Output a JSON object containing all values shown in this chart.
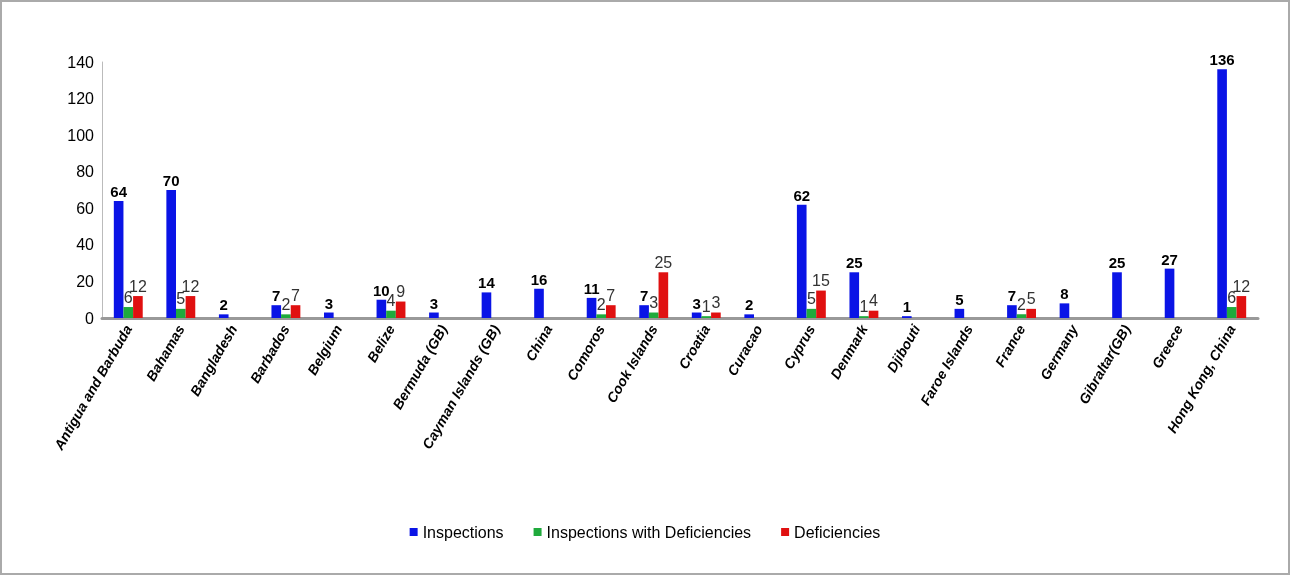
{
  "chart_data": {
    "type": "bar",
    "categories": [
      "Antigua and Barbuda",
      "Bahamas",
      "Bangladesh",
      "Barbados",
      "Belgium",
      "Belize",
      "Bermuda (GB)",
      "Cayman Islands (GB)",
      "China",
      "Comoros",
      "Cook Islands",
      "Croatia",
      "Curacao",
      "Cyprus",
      "Denmark",
      "Djibouti",
      "Faroe Islands",
      "France",
      "Germany",
      "Gibraltar(GB)",
      "Greece",
      "Hong Kong, China"
    ],
    "series": [
      {
        "name": "Inspections",
        "color": "#0a14e6",
        "values": [
          64,
          70,
          2,
          7,
          3,
          10,
          3,
          14,
          16,
          11,
          7,
          3,
          2,
          62,
          25,
          1,
          5,
          7,
          8,
          25,
          27,
          136
        ]
      },
      {
        "name": "Inspections with Deficiencies",
        "color": "#1faa3c",
        "values": [
          6,
          5,
          null,
          2,
          null,
          4,
          null,
          null,
          null,
          2,
          3,
          1,
          null,
          5,
          1,
          null,
          null,
          2,
          null,
          null,
          null,
          6
        ]
      },
      {
        "name": "Deficiencies",
        "color": "#e01010",
        "values": [
          12,
          12,
          null,
          7,
          null,
          9,
          null,
          null,
          null,
          7,
          25,
          3,
          null,
          15,
          4,
          null,
          null,
          5,
          null,
          null,
          null,
          12
        ]
      }
    ],
    "ylim": [
      0,
      140
    ],
    "yticks": [
      0,
      20,
      40,
      60,
      80,
      100,
      120,
      140
    ],
    "grid": false,
    "legend": "bottom",
    "data_labels": true
  }
}
